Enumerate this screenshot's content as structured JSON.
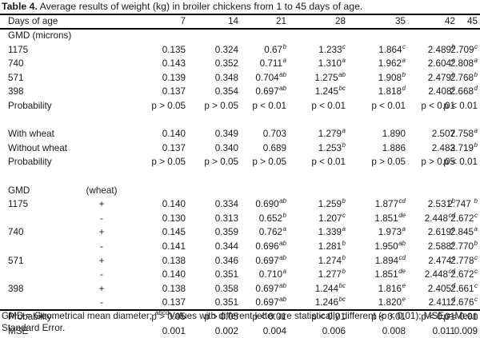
{
  "caption": {
    "label": "Table 4.",
    "text": " Average results of weight (kg) in broiler chickens from 1 to 45 days of age."
  },
  "header": {
    "label": "Days of age",
    "days": [
      "7",
      "14",
      "21",
      "28",
      "35",
      "42",
      "45"
    ]
  },
  "rows": [
    {
      "label": "GMD (microns)"
    },
    {
      "label": "1175",
      "cells": [
        [
          "0.135",
          ""
        ],
        [
          "0.324",
          ""
        ],
        [
          "0.67",
          "b"
        ],
        [
          "1.233",
          "c"
        ],
        [
          "1.864",
          "c"
        ],
        [
          "2.489",
          "b"
        ],
        [
          "2.709",
          "c"
        ]
      ]
    },
    {
      "label": "740",
      "cells": [
        [
          "0.143",
          ""
        ],
        [
          "0.352",
          ""
        ],
        [
          "0.711",
          "a"
        ],
        [
          "1.310",
          "a"
        ],
        [
          "1.962",
          "a"
        ],
        [
          "2.604",
          "a"
        ],
        [
          "2.808",
          "a"
        ]
      ]
    },
    {
      "label": "571",
      "cells": [
        [
          "0.139",
          ""
        ],
        [
          "0.348",
          ""
        ],
        [
          "0.704",
          "ab"
        ],
        [
          "1.275",
          "ab"
        ],
        [
          "1.908",
          "b"
        ],
        [
          "2.479",
          "b"
        ],
        [
          "2.768",
          "b"
        ]
      ]
    },
    {
      "label": "398",
      "cells": [
        [
          "0.137",
          ""
        ],
        [
          "0.354",
          ""
        ],
        [
          "0.697",
          "ab"
        ],
        [
          "1.245",
          "bc"
        ],
        [
          "1.818",
          "d"
        ],
        [
          "2.408",
          "c"
        ],
        [
          "2.668",
          "d"
        ]
      ]
    },
    {
      "label": "Probability",
      "cells": [
        [
          "p > 0.05",
          ""
        ],
        [
          "p > 0.05",
          ""
        ],
        [
          "p < 0.01",
          ""
        ],
        [
          "p < 0.01",
          ""
        ],
        [
          "p < 0.01",
          ""
        ],
        [
          "p < 0.01",
          ""
        ],
        [
          "p < 0.01",
          ""
        ]
      ]
    },
    {
      "label": ""
    },
    {
      "label": "With wheat",
      "cells": [
        [
          "0.140",
          ""
        ],
        [
          "0.349",
          ""
        ],
        [
          "0.703",
          ""
        ],
        [
          "1.279",
          "a"
        ],
        [
          "1.890",
          ""
        ],
        [
          "2.507",
          ""
        ],
        [
          "2.758",
          "a"
        ]
      ]
    },
    {
      "label": "Without wheat",
      "cells": [
        [
          "0.137",
          ""
        ],
        [
          "0.340",
          ""
        ],
        [
          "0.689",
          ""
        ],
        [
          "1.253",
          "b"
        ],
        [
          "1.886",
          ""
        ],
        [
          "2.483",
          ""
        ],
        [
          "2.719",
          "b"
        ]
      ]
    },
    {
      "label": "Probability",
      "cells": [
        [
          "p > 0.05",
          ""
        ],
        [
          "p > 0.05",
          ""
        ],
        [
          "p > 0.05",
          ""
        ],
        [
          "p < 0.01",
          ""
        ],
        [
          "p > 0.05",
          ""
        ],
        [
          "p > 0.05",
          ""
        ],
        [
          "p < 0.01",
          ""
        ]
      ]
    },
    {
      "label": ""
    },
    {
      "label": "GMD",
      "wheat": "(wheat)"
    },
    {
      "label": "1175",
      "wheat": "+",
      "cells": [
        [
          "0.140",
          ""
        ],
        [
          "0.334",
          ""
        ],
        [
          "0.690",
          "ab"
        ],
        [
          "1.259",
          "b"
        ],
        [
          "1.877",
          "cd"
        ],
        [
          "2.531",
          "b"
        ],
        [
          "2.747 ",
          "b"
        ]
      ]
    },
    {
      "label": "",
      "wheat": "-",
      "cells": [
        [
          "0.130",
          ""
        ],
        [
          "0.313",
          ""
        ],
        [
          "0.652",
          "b"
        ],
        [
          "1.207",
          "c"
        ],
        [
          "1.851",
          "de"
        ],
        [
          "2.448",
          "cd"
        ],
        [
          "2.672",
          "c"
        ]
      ]
    },
    {
      "label": "740",
      "wheat": "+",
      "cells": [
        [
          "0.145",
          ""
        ],
        [
          "0.359",
          ""
        ],
        [
          "0.762",
          "a"
        ],
        [
          "1.339",
          "a"
        ],
        [
          "1.973",
          "a"
        ],
        [
          "2.619",
          "a"
        ],
        [
          "2.845",
          "a"
        ]
      ]
    },
    {
      "label": "",
      "wheat": "-",
      "cells": [
        [
          "0.141",
          ""
        ],
        [
          "0.344",
          ""
        ],
        [
          "0.696",
          "ab"
        ],
        [
          "1.281",
          "b"
        ],
        [
          "1.950",
          "ab"
        ],
        [
          "2.588",
          "a"
        ],
        [
          "2.770",
          "b"
        ]
      ]
    },
    {
      "label": "571",
      "wheat": "+",
      "cells": [
        [
          "0.138",
          ""
        ],
        [
          "0.346",
          ""
        ],
        [
          "0.697",
          "ab"
        ],
        [
          "1.274",
          "b"
        ],
        [
          "1.894",
          "cd"
        ],
        [
          "2.474",
          "c"
        ],
        [
          "2.778",
          "c"
        ]
      ]
    },
    {
      "label": "",
      "wheat": "-",
      "cells": [
        [
          "0.140",
          ""
        ],
        [
          "0.351",
          ""
        ],
        [
          "0.710",
          "a"
        ],
        [
          "1.277",
          "b"
        ],
        [
          "1.851",
          "de"
        ],
        [
          "2.448",
          "cd"
        ],
        [
          "2.672",
          "c"
        ]
      ]
    },
    {
      "label": "398",
      "wheat": "+",
      "cells": [
        [
          "0.138",
          ""
        ],
        [
          "0.358",
          ""
        ],
        [
          "0.697",
          "ab"
        ],
        [
          "1.244",
          "bc"
        ],
        [
          "1.816",
          "e"
        ],
        [
          "2.405",
          "d"
        ],
        [
          "2.661",
          "c"
        ]
      ]
    },
    {
      "label": "",
      "wheat": "-",
      "cells": [
        [
          "0.137",
          ""
        ],
        [
          "0.351",
          ""
        ],
        [
          "0.697",
          "ab"
        ],
        [
          "1.246",
          "bc"
        ],
        [
          "1.820",
          "e"
        ],
        [
          "2.411",
          "d"
        ],
        [
          "2.676",
          "c"
        ]
      ]
    },
    {
      "label": "Probability",
      "cells": [
        [
          "p > 0.05",
          ""
        ],
        [
          "p > 0.05",
          ""
        ],
        [
          "p < 0.01",
          ""
        ],
        [
          "p < 0.01",
          ""
        ],
        [
          "p < 0.01",
          ""
        ],
        [
          "p < 0.01",
          ""
        ],
        [
          "p < 0.01",
          ""
        ]
      ]
    },
    {
      "label": "MSE",
      "cells": [
        [
          "0.001",
          ""
        ],
        [
          "0.002",
          ""
        ],
        [
          "0.004",
          ""
        ],
        [
          "0.006",
          ""
        ],
        [
          "0.008",
          ""
        ],
        [
          "0.011",
          ""
        ],
        [
          "0.009",
          ""
        ]
      ]
    }
  ],
  "footnote": {
    "part1": "GMD = Geometrical mean diameter; ",
    "sup": "abcd",
    "part2": "Values with different letter are statistically different (p < 0.01); MSE = Mean Standard Error."
  }
}
